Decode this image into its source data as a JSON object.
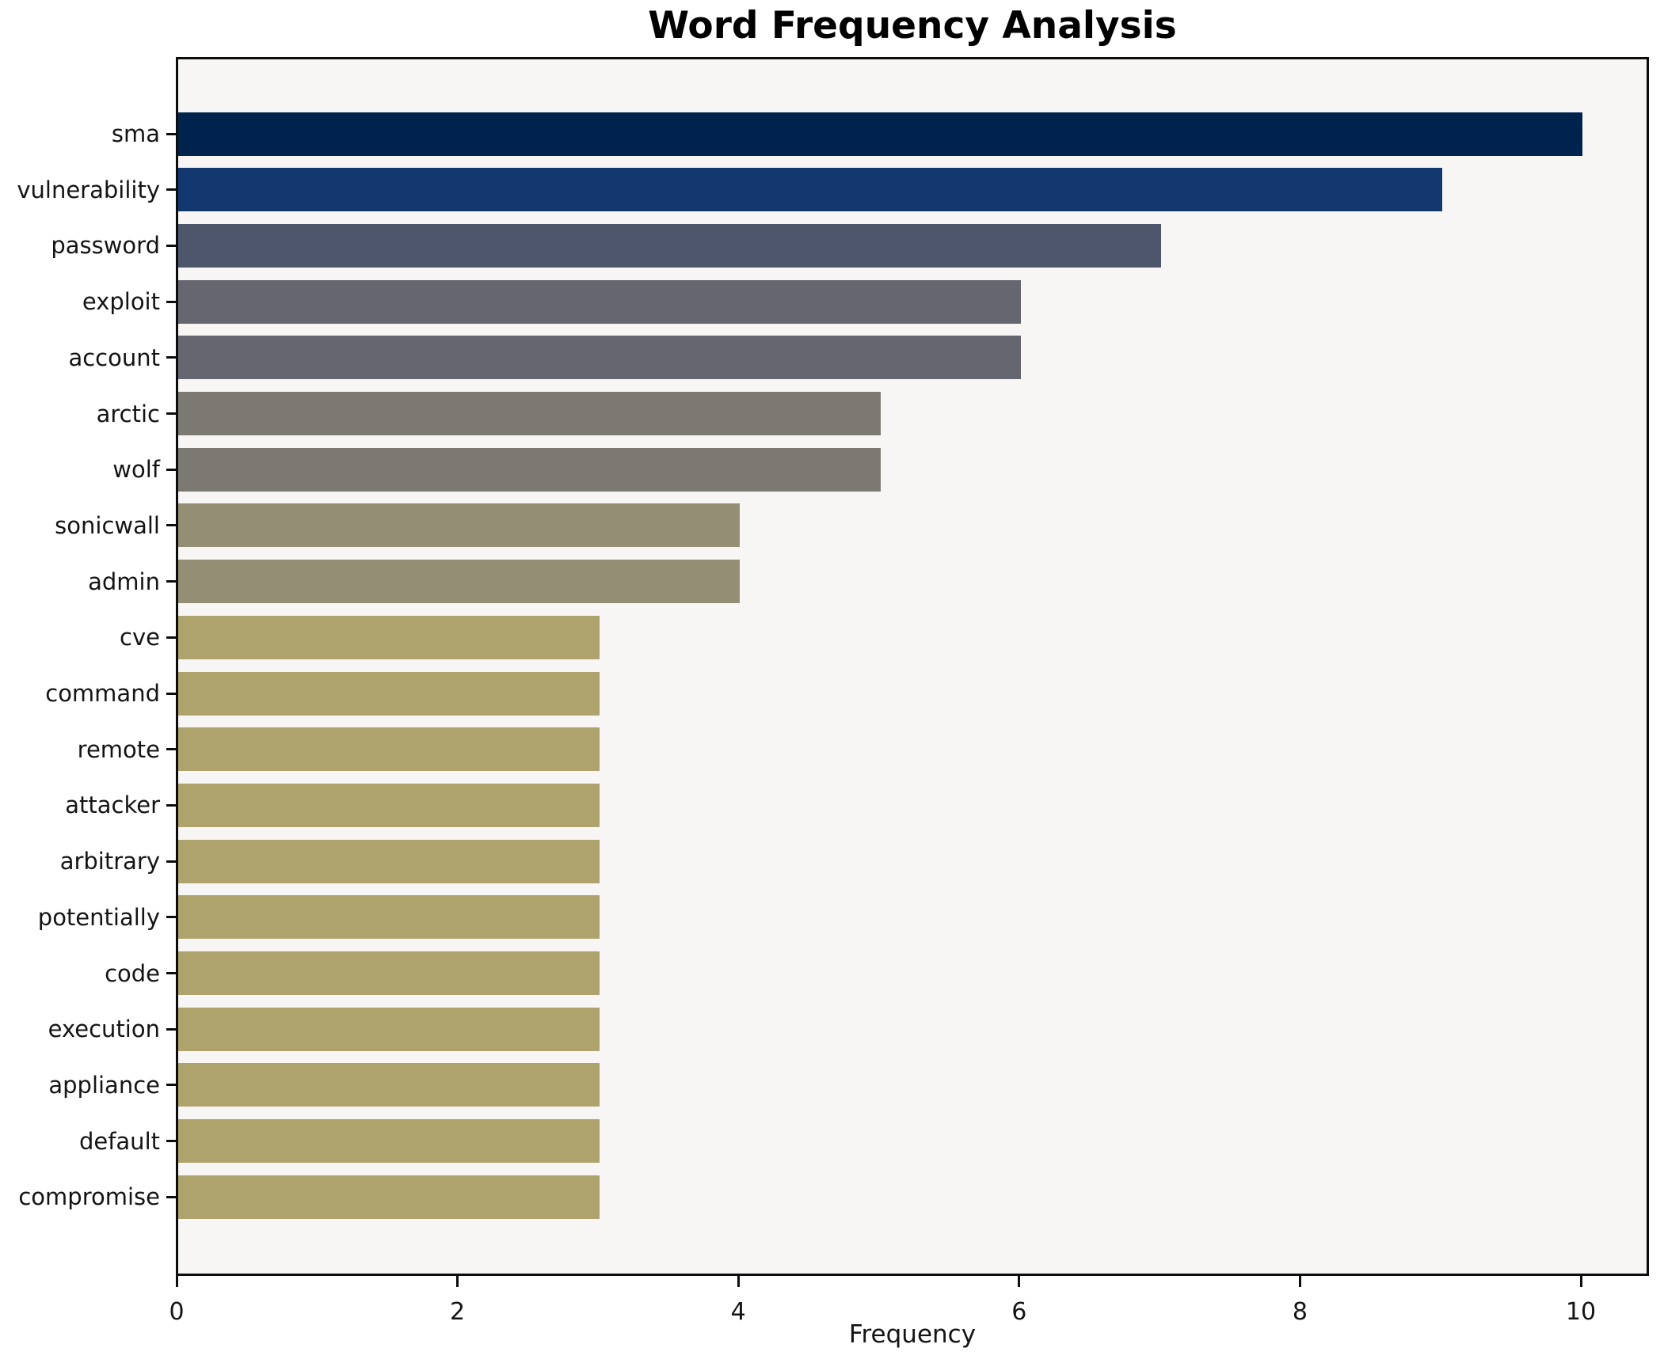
{
  "chart_data": {
    "type": "bar",
    "orientation": "horizontal",
    "title": "Word Frequency Analysis",
    "xlabel": "Frequency",
    "ylabel": "",
    "xlim": [
      0,
      10.5
    ],
    "x_ticks": [
      0,
      2,
      4,
      6,
      8,
      10
    ],
    "grid": false,
    "legend": false,
    "categories": [
      "sma",
      "vulnerability",
      "password",
      "exploit",
      "account",
      "arctic",
      "wolf",
      "sonicwall",
      "admin",
      "cve",
      "command",
      "remote",
      "attacker",
      "arbitrary",
      "potentially",
      "code",
      "execution",
      "appliance",
      "default",
      "compromise"
    ],
    "values": [
      10,
      9,
      7,
      6,
      6,
      5,
      5,
      4,
      4,
      3,
      3,
      3,
      3,
      3,
      3,
      3,
      3,
      3,
      3,
      3
    ],
    "bar_colors": [
      "#00234e",
      "#12376f",
      "#4e566b",
      "#65666f",
      "#65666f",
      "#7b7972",
      "#7b7972",
      "#948e74",
      "#948e74",
      "#aea36d",
      "#aea36d",
      "#aea36d",
      "#aea36d",
      "#aea36d",
      "#aea36d",
      "#aea36d",
      "#aea36d",
      "#aea36d",
      "#aea36d",
      "#aea36d"
    ]
  },
  "style": {
    "figure_bg": "#ffffff",
    "plot_bg": "#f7f6f5",
    "axis_color": "#0d0d0d",
    "text_color": "#141414"
  }
}
